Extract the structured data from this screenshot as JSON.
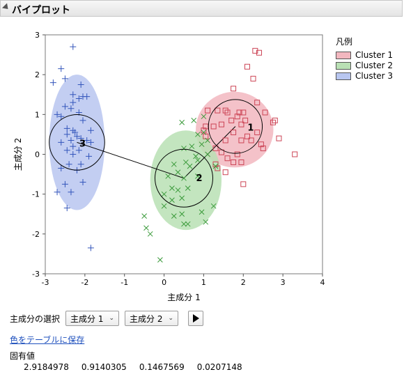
{
  "header": {
    "title": "バイプロット"
  },
  "legend": {
    "title": "凡例",
    "items": [
      {
        "label": "Cluster 1",
        "fill": "#f2b7bf",
        "stroke": "#cc4455"
      },
      {
        "label": "Cluster 2",
        "fill": "#b9e0b4",
        "stroke": "#3a9a3a"
      },
      {
        "label": "Cluster 3",
        "fill": "#b8c6f0",
        "stroke": "#3355bb"
      }
    ]
  },
  "controls": {
    "select_label": "主成分の選択",
    "x_component": "主成分 1",
    "y_component": "主成分 2"
  },
  "save_link": "色をテーブルに保存",
  "eigen": {
    "label": "固有値",
    "values": [
      "2.9184978",
      "0.9140305",
      "0.1467569",
      "0.0207148"
    ]
  },
  "chart_data": {
    "type": "scatter",
    "xlabel": "主成分 1",
    "ylabel": "主成分 2",
    "xlim": [
      -3,
      4
    ],
    "ylim": [
      -3,
      3
    ],
    "xticks": [
      "-3",
      "-2",
      "-1",
      "0",
      "1",
      "2",
      "3",
      "4"
    ],
    "yticks": [
      "-3",
      "-2",
      "-1",
      "0",
      "1",
      "2",
      "3"
    ],
    "clusters": [
      {
        "name": "Cluster 1",
        "label": "1",
        "center": [
          1.8,
          0.7
        ],
        "ellipse": {
          "cx": 1.78,
          "cy": 0.62,
          "rx": 0.98,
          "ry": 0.95
        },
        "circle_r": 0.68,
        "marker": "square",
        "points": [
          [
            2.3,
            2.6
          ],
          [
            2.4,
            2.55
          ],
          [
            2.25,
            1.9
          ],
          [
            2.1,
            2.2
          ],
          [
            1.75,
            1.65
          ],
          [
            1.1,
            1.1
          ],
          [
            1.55,
            1.1
          ],
          [
            1.35,
            1.1
          ],
          [
            1.6,
            1.05
          ],
          [
            2.35,
            1.3
          ],
          [
            1.9,
            1.05
          ],
          [
            2.0,
            1.05
          ],
          [
            1.85,
            0.95
          ],
          [
            2.05,
            0.85
          ],
          [
            1.7,
            0.85
          ],
          [
            2.55,
            1.05
          ],
          [
            1.45,
            0.75
          ],
          [
            1.95,
            0.75
          ],
          [
            2.8,
            0.85
          ],
          [
            2.75,
            0.8
          ],
          [
            1.05,
            0.7
          ],
          [
            1.25,
            0.7
          ],
          [
            1.75,
            0.55
          ],
          [
            2.1,
            0.45
          ],
          [
            2.35,
            0.55
          ],
          [
            2.45,
            0.25
          ],
          [
            1.55,
            0.35
          ],
          [
            1.95,
            0.35
          ],
          [
            2.2,
            0.35
          ],
          [
            2.9,
            0.4
          ],
          [
            3.3,
            0.0
          ],
          [
            2.5,
            0.15
          ],
          [
            1.3,
            0.15
          ],
          [
            1.45,
            0.05
          ],
          [
            1.85,
            0.0
          ],
          [
            1.6,
            -0.1
          ],
          [
            1.75,
            -0.2
          ],
          [
            1.3,
            -0.25
          ],
          [
            1.95,
            -0.2
          ],
          [
            1.55,
            -0.45
          ],
          [
            2.0,
            -0.75
          ],
          [
            1.35,
            -0.35
          ],
          [
            1.05,
            0.45
          ],
          [
            1.0,
            0.6
          ]
        ]
      },
      {
        "name": "Cluster 2",
        "label": "2",
        "center": [
          0.5,
          -0.6
        ],
        "ellipse": {
          "cx": 0.55,
          "cy": -0.65,
          "rx": 0.9,
          "ry": 1.25
        },
        "circle_r": 0.73,
        "marker": "x",
        "points": [
          [
            0.45,
            0.8
          ],
          [
            0.75,
            0.85
          ],
          [
            1.0,
            0.55
          ],
          [
            0.85,
            0.5
          ],
          [
            1.1,
            0.35
          ],
          [
            0.95,
            0.25
          ],
          [
            0.7,
            0.2
          ],
          [
            0.5,
            0.15
          ],
          [
            1.1,
            0.0
          ],
          [
            1.3,
            -0.3
          ],
          [
            0.85,
            -0.15
          ],
          [
            0.55,
            -0.2
          ],
          [
            0.25,
            -0.25
          ],
          [
            0.65,
            -0.3
          ],
          [
            0.35,
            -0.45
          ],
          [
            0.1,
            -0.55
          ],
          [
            0.5,
            -0.6
          ],
          [
            0.85,
            -0.55
          ],
          [
            0.2,
            -0.85
          ],
          [
            0.0,
            -1.0
          ],
          [
            0.35,
            -0.9
          ],
          [
            0.6,
            -0.85
          ],
          [
            0.45,
            -1.1
          ],
          [
            0.2,
            -1.15
          ],
          [
            0.0,
            -1.3
          ],
          [
            0.25,
            -1.55
          ],
          [
            0.5,
            -1.75
          ],
          [
            0.6,
            -1.75
          ],
          [
            0.45,
            -1.5
          ],
          [
            -0.5,
            -1.55
          ],
          [
            -0.45,
            -1.85
          ],
          [
            -0.35,
            -2.0
          ],
          [
            -0.1,
            -2.65
          ],
          [
            0.95,
            -1.45
          ],
          [
            1.0,
            0.95
          ],
          [
            0.8,
            -0.05
          ],
          [
            1.05,
            -1.7
          ],
          [
            1.25,
            -1.3
          ]
        ]
      },
      {
        "name": "Cluster 3",
        "label": "3",
        "center": [
          -2.2,
          0.3
        ],
        "ellipse": {
          "cx": -2.2,
          "cy": 0.3,
          "rx": 0.7,
          "ry": 1.7
        },
        "circle_r": 0.7,
        "marker": "plus",
        "points": [
          [
            -2.3,
            2.7
          ],
          [
            -2.6,
            2.15
          ],
          [
            -2.5,
            1.9
          ],
          [
            -2.8,
            1.8
          ],
          [
            -2.1,
            1.75
          ],
          [
            -2.3,
            1.5
          ],
          [
            -2.05,
            1.45
          ],
          [
            -1.95,
            1.45
          ],
          [
            -2.15,
            1.4
          ],
          [
            -2.3,
            1.3
          ],
          [
            -2.5,
            1.2
          ],
          [
            -2.35,
            1.15
          ],
          [
            -2.7,
            1.0
          ],
          [
            -2.15,
            1.05
          ],
          [
            -2.6,
            0.95
          ],
          [
            -2.05,
            0.85
          ],
          [
            -2.45,
            0.65
          ],
          [
            -2.3,
            0.6
          ],
          [
            -1.85,
            0.6
          ],
          [
            -2.25,
            0.55
          ],
          [
            -2.45,
            0.5
          ],
          [
            -2.2,
            0.45
          ],
          [
            -2.1,
            0.4
          ],
          [
            -2.35,
            0.35
          ],
          [
            -1.95,
            0.35
          ],
          [
            -1.85,
            0.3
          ],
          [
            -2.6,
            0.3
          ],
          [
            -2.3,
            0.2
          ],
          [
            -2.45,
            0.1
          ],
          [
            -2.15,
            0.1
          ],
          [
            -2.3,
            0.0
          ],
          [
            -1.9,
            -0.05
          ],
          [
            -2.4,
            -0.25
          ],
          [
            -2.1,
            -0.25
          ],
          [
            -2.6,
            -0.35
          ],
          [
            -2.2,
            -0.4
          ],
          [
            -2.05,
            -0.7
          ],
          [
            -2.5,
            -0.75
          ],
          [
            -2.35,
            -0.95
          ],
          [
            -2.7,
            -0.95
          ],
          [
            -2.45,
            -1.35
          ],
          [
            -1.85,
            -2.35
          ]
        ]
      }
    ]
  }
}
